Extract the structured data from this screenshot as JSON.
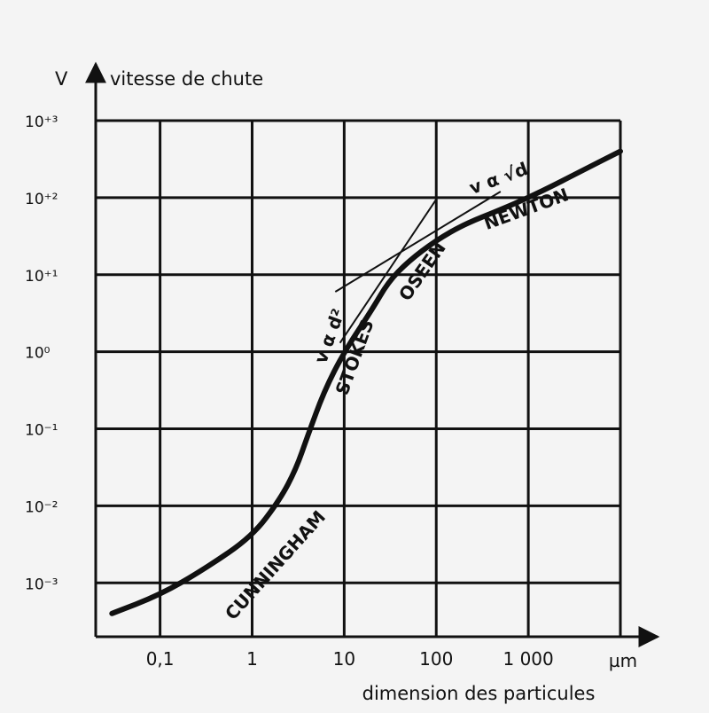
{
  "chart_data": {
    "type": "line",
    "title": "",
    "y_axis": {
      "symbol": "V",
      "label": "vitesse de chute",
      "scale": "log",
      "ticks": [
        {
          "value": 0.001,
          "label": "10⁻³"
        },
        {
          "value": 0.01,
          "label": "10⁻²"
        },
        {
          "value": 0.1,
          "label": "10⁻¹"
        },
        {
          "value": 1,
          "label": "10⁰"
        },
        {
          "value": 10,
          "label": "10⁺¹"
        },
        {
          "value": 100,
          "label": "10⁺²"
        },
        {
          "value": 1000,
          "label": "10⁺³"
        }
      ],
      "ylim": [
        0.0002,
        1000
      ]
    },
    "x_axis": {
      "label": "dimension des particules",
      "unit": "µm",
      "scale": "log",
      "ticks": [
        {
          "value": 0.1,
          "label": "0,1"
        },
        {
          "value": 1,
          "label": "1"
        },
        {
          "value": 10,
          "label": "10"
        },
        {
          "value": 100,
          "label": "100"
        },
        {
          "value": 1000,
          "label": "1 000"
        }
      ],
      "xlim": [
        0.02,
        10000
      ]
    },
    "grid": true,
    "series": [
      {
        "name": "",
        "x": [
          0.03,
          0.1,
          0.3,
          1,
          2,
          3,
          4,
          6,
          10,
          20,
          30,
          50,
          100,
          200,
          500,
          1000,
          2000,
          4000,
          10000
        ],
        "y": [
          0.0004,
          0.0007,
          0.0015,
          0.004,
          0.012,
          0.03,
          0.08,
          0.3,
          1,
          3.5,
          8,
          15,
          28,
          45,
          70,
          100,
          150,
          230,
          400
        ]
      }
    ],
    "annotations": [
      {
        "text": "CUNNINGHAM",
        "x": 2,
        "y": 0.0015
      },
      {
        "text": "STOKES",
        "x": 15,
        "y": 0.8
      },
      {
        "text": "v α d²",
        "x": 8,
        "y": 1.5
      },
      {
        "text": "OSEEN",
        "x": 80,
        "y": 10
      },
      {
        "text": "NEWTON",
        "x": 1000,
        "y": 60
      },
      {
        "text": "v α √d",
        "x": 500,
        "y": 150
      }
    ]
  }
}
